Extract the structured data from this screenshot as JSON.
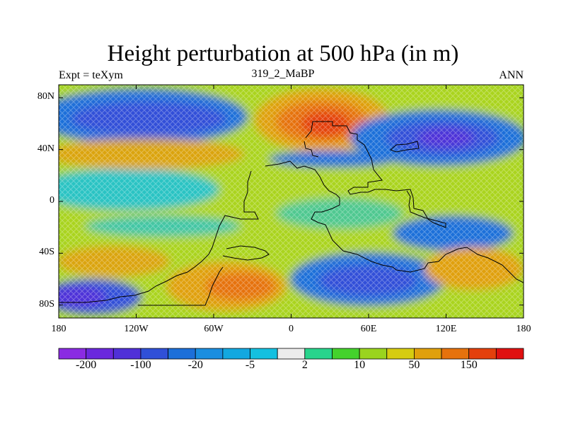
{
  "header": {
    "title": "Height perturbation at 500 hPa (in m)",
    "left_label": "Expt = teXym",
    "center_label": "319_2_MaBP",
    "right_label": "ANN"
  },
  "map": {
    "x_ticks": [
      "180",
      "120W",
      "60W",
      "0",
      "60E",
      "120E",
      "180"
    ],
    "y_ticks": [
      "80N",
      "40N",
      "0",
      "40S",
      "80S"
    ],
    "x_tick_values": [
      -180,
      -120,
      -60,
      0,
      60,
      120,
      180
    ],
    "y_tick_values": [
      80,
      40,
      0,
      -40,
      -80
    ],
    "lon_range": [
      -180,
      180
    ],
    "lat_range": [
      -90,
      90
    ]
  },
  "colorbar": {
    "colors": [
      "#8a2be2",
      "#6a28dd",
      "#5030d8",
      "#3050d8",
      "#1c6fd9",
      "#1a8ee0",
      "#13a8e0",
      "#14c0e0",
      "#ececec",
      "#28d48c",
      "#44d22c",
      "#9ad41e",
      "#d6cc10",
      "#e0a00c",
      "#e6720c",
      "#e4400c",
      "#e01010"
    ],
    "labels": [
      "-200",
      "-100",
      "-20",
      "-5",
      "2",
      "10",
      "50",
      "150"
    ]
  }
}
